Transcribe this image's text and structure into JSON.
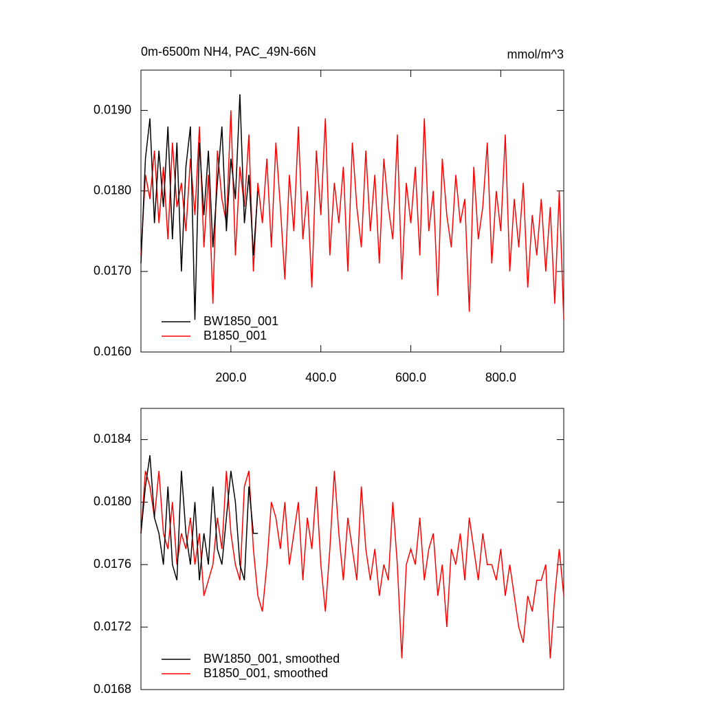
{
  "chart_data": [
    {
      "type": "line",
      "title": "0m-6500m NH4, PAC_49N-66N",
      "units": "mmol/m^3",
      "x": [
        0,
        10,
        20,
        30,
        40,
        50,
        60,
        70,
        80,
        90,
        100,
        110,
        120,
        130,
        140,
        150,
        160,
        170,
        180,
        190,
        200,
        210,
        220,
        230,
        240,
        250,
        260,
        270,
        280,
        290,
        300,
        310,
        320,
        330,
        340,
        350,
        360,
        370,
        380,
        390,
        400,
        410,
        420,
        430,
        440,
        450,
        460,
        470,
        480,
        490,
        500,
        510,
        520,
        530,
        540,
        550,
        560,
        570,
        580,
        590,
        600,
        610,
        620,
        630,
        640,
        650,
        660,
        670,
        680,
        690,
        700,
        710,
        720,
        730,
        740,
        750,
        760,
        770,
        780,
        790,
        800,
        810,
        820,
        830,
        840,
        850,
        860,
        870,
        880,
        890,
        900,
        910,
        920,
        930,
        940
      ],
      "series": [
        {
          "name": "BW1850_001",
          "color": "#000000",
          "x": [
            0,
            10,
            20,
            30,
            40,
            50,
            60,
            70,
            80,
            90,
            100,
            110,
            120,
            130,
            140,
            150,
            160,
            170,
            180,
            190,
            200,
            210,
            220,
            230,
            240,
            250,
            260
          ],
          "values": [
            0.0171,
            0.0184,
            0.0189,
            0.0176,
            0.0185,
            0.0178,
            0.0188,
            0.0174,
            0.0186,
            0.017,
            0.0183,
            0.0188,
            0.0164,
            0.0186,
            0.0177,
            0.0185,
            0.0173,
            0.0181,
            0.0188,
            0.0175,
            0.0184,
            0.0179,
            0.0192,
            0.0176,
            0.0182,
            0.0172,
            0.018
          ]
        },
        {
          "name": "B1850_001",
          "color": "#ff0000",
          "values": [
            0.0172,
            0.0182,
            0.0179,
            0.0185,
            0.0176,
            0.0183,
            0.0174,
            0.0186,
            0.0178,
            0.0181,
            0.0175,
            0.0184,
            0.0177,
            0.0188,
            0.0173,
            0.0182,
            0.0166,
            0.0185,
            0.0179,
            0.0176,
            0.019,
            0.0172,
            0.0183,
            0.0178,
            0.0187,
            0.017,
            0.0181,
            0.0176,
            0.0184,
            0.0173,
            0.0186,
            0.0178,
            0.0169,
            0.0182,
            0.0175,
            0.0188,
            0.0174,
            0.018,
            0.0168,
            0.0185,
            0.0177,
            0.0189,
            0.0172,
            0.0181,
            0.0176,
            0.0183,
            0.017,
            0.0186,
            0.0178,
            0.0173,
            0.0185,
            0.0175,
            0.0182,
            0.0171,
            0.0184,
            0.0178,
            0.0174,
            0.0187,
            0.0169,
            0.0181,
            0.0176,
            0.0183,
            0.0172,
            0.0189,
            0.0175,
            0.018,
            0.0167,
            0.0184,
            0.0177,
            0.0173,
            0.0182,
            0.0176,
            0.0179,
            0.0165,
            0.0183,
            0.0174,
            0.0178,
            0.0186,
            0.0171,
            0.018,
            0.0175,
            0.0187,
            0.017,
            0.0179,
            0.0173,
            0.0181,
            0.0168,
            0.0177,
            0.0172,
            0.0179,
            0.017,
            0.0178,
            0.0166,
            0.018,
            0.0164
          ]
        }
      ],
      "xlim": [
        0,
        940
      ],
      "xticks": [
        {
          "value": 200,
          "label": "200.0"
        },
        {
          "value": 400,
          "label": "400.0"
        },
        {
          "value": 600,
          "label": "600.0"
        },
        {
          "value": 800,
          "label": "800.0"
        }
      ],
      "ylim": [
        0.016,
        0.0195
      ],
      "yticks": [
        {
          "value": 0.016,
          "label": "0.0160"
        },
        {
          "value": 0.017,
          "label": "0.0170"
        },
        {
          "value": 0.018,
          "label": "0.0180"
        },
        {
          "value": 0.019,
          "label": "0.0190"
        }
      ],
      "legend": "lower left"
    },
    {
      "type": "line",
      "x": [
        0,
        10,
        20,
        30,
        40,
        50,
        60,
        70,
        80,
        90,
        100,
        110,
        120,
        130,
        140,
        150,
        160,
        170,
        180,
        190,
        200,
        210,
        220,
        230,
        240,
        250,
        260,
        270,
        280,
        290,
        300,
        310,
        320,
        330,
        340,
        350,
        360,
        370,
        380,
        390,
        400,
        410,
        420,
        430,
        440,
        450,
        460,
        470,
        480,
        490,
        500,
        510,
        520,
        530,
        540,
        550,
        560,
        570,
        580,
        590,
        600,
        610,
        620,
        630,
        640,
        650,
        660,
        670,
        680,
        690,
        700,
        710,
        720,
        730,
        740,
        750,
        760,
        770,
        780,
        790,
        800,
        810,
        820,
        830,
        840,
        850,
        860,
        870,
        880,
        890,
        900,
        910,
        920,
        930,
        940
      ],
      "series": [
        {
          "name": "BW1850_001, smoothed",
          "color": "#000000",
          "x": [
            0,
            10,
            20,
            30,
            40,
            50,
            60,
            70,
            80,
            90,
            100,
            110,
            120,
            130,
            140,
            150,
            160,
            170,
            180,
            190,
            200,
            210,
            220,
            230,
            240,
            250,
            260
          ],
          "values": [
            0.0178,
            0.0181,
            0.0183,
            0.0179,
            0.0178,
            0.0176,
            0.0181,
            0.0176,
            0.0175,
            0.0182,
            0.0178,
            0.0176,
            0.018,
            0.0175,
            0.0178,
            0.0176,
            0.0181,
            0.0177,
            0.0176,
            0.0179,
            0.0182,
            0.018,
            0.0176,
            0.0175,
            0.0181,
            0.0178,
            0.0178
          ]
        },
        {
          "name": "B1850_001, smoothed",
          "color": "#ff0000",
          "values": [
            0.0178,
            0.0182,
            0.0181,
            0.0179,
            0.0182,
            0.0178,
            0.0177,
            0.018,
            0.0176,
            0.0178,
            0.0177,
            0.0179,
            0.0176,
            0.0178,
            0.0174,
            0.0175,
            0.0176,
            0.0179,
            0.0177,
            0.0182,
            0.0178,
            0.0176,
            0.0175,
            0.0181,
            0.0182,
            0.0177,
            0.0174,
            0.0173,
            0.0176,
            0.018,
            0.0179,
            0.0177,
            0.018,
            0.0176,
            0.0178,
            0.018,
            0.0175,
            0.0179,
            0.0177,
            0.0181,
            0.0176,
            0.0173,
            0.0177,
            0.0182,
            0.0178,
            0.0175,
            0.0179,
            0.0177,
            0.0175,
            0.0181,
            0.0177,
            0.0175,
            0.0177,
            0.0174,
            0.0176,
            0.0175,
            0.018,
            0.0176,
            0.017,
            0.0176,
            0.0177,
            0.0176,
            0.0179,
            0.0175,
            0.0177,
            0.0178,
            0.0174,
            0.0176,
            0.0172,
            0.0177,
            0.0176,
            0.0178,
            0.0175,
            0.0179,
            0.0177,
            0.0175,
            0.0178,
            0.0176,
            0.0176,
            0.0175,
            0.0177,
            0.0174,
            0.0176,
            0.0174,
            0.0172,
            0.0171,
            0.0174,
            0.0173,
            0.0175,
            0.0175,
            0.0176,
            0.017,
            0.0174,
            0.0177,
            0.0174
          ]
        }
      ],
      "xlim": [
        0,
        940
      ],
      "ylim": [
        0.0168,
        0.0186
      ],
      "yticks": [
        {
          "value": 0.0168,
          "label": "0.0168"
        },
        {
          "value": 0.0172,
          "label": "0.0172"
        },
        {
          "value": 0.0176,
          "label": "0.0176"
        },
        {
          "value": 0.018,
          "label": "0.0180"
        },
        {
          "value": 0.0184,
          "label": "0.0184"
        }
      ],
      "legend": "lower left"
    }
  ]
}
